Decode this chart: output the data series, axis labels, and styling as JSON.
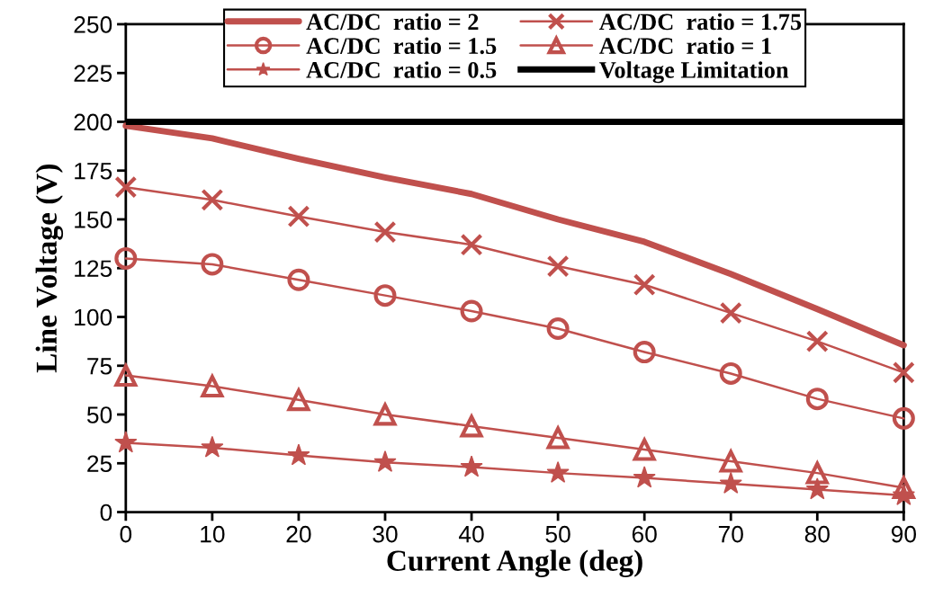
{
  "chart_data": {
    "type": "line",
    "xlabel": "Current Angle (deg)",
    "ylabel": "Line Voltage (V)",
    "x": [
      0,
      10,
      20,
      30,
      40,
      50,
      60,
      70,
      80,
      90
    ],
    "series": [
      {
        "name": "AC/DC  ratio = 2",
        "color": "#c0504d",
        "marker": "none",
        "values": [
          198,
          191.5,
          181,
          171.5,
          163,
          150,
          138.5,
          122,
          104,
          85.5
        ]
      },
      {
        "name": "AC/DC  ratio = 1.75",
        "color": "#c0504d",
        "marker": "cross",
        "values": [
          166.5,
          160,
          151.5,
          143.5,
          137,
          126,
          116.5,
          102,
          87.5,
          71.5
        ]
      },
      {
        "name": "AC/DC  ratio = 1.5",
        "color": "#c0504d",
        "marker": "circle",
        "values": [
          130,
          127,
          119,
          111,
          103,
          94,
          82,
          71,
          58,
          48
        ]
      },
      {
        "name": "AC/DC  ratio = 1",
        "color": "#c0504d",
        "marker": "triangle",
        "values": [
          70,
          64.5,
          57.5,
          50,
          44,
          38,
          32,
          26,
          20,
          12.5
        ]
      },
      {
        "name": "AC/DC  ratio = 0.5",
        "color": "#c0504d",
        "marker": "star",
        "values": [
          35.5,
          33,
          29,
          25.5,
          23,
          20,
          17.5,
          14.5,
          11.5,
          8.5
        ]
      }
    ],
    "ref_lines": [
      {
        "axis": "y",
        "value": 200,
        "label": "Voltage Limitation",
        "color": "#000000",
        "line_style": "solid"
      }
    ],
    "xlim": [
      0,
      90
    ],
    "xticks": [
      0,
      10,
      20,
      30,
      40,
      50,
      60,
      70,
      80,
      90
    ],
    "ylim": [
      0,
      250
    ],
    "yticks": [
      0,
      25,
      50,
      75,
      100,
      125,
      150,
      175,
      200,
      225,
      250
    ],
    "grid": false,
    "legend": "top",
    "line_style": "solid"
  }
}
